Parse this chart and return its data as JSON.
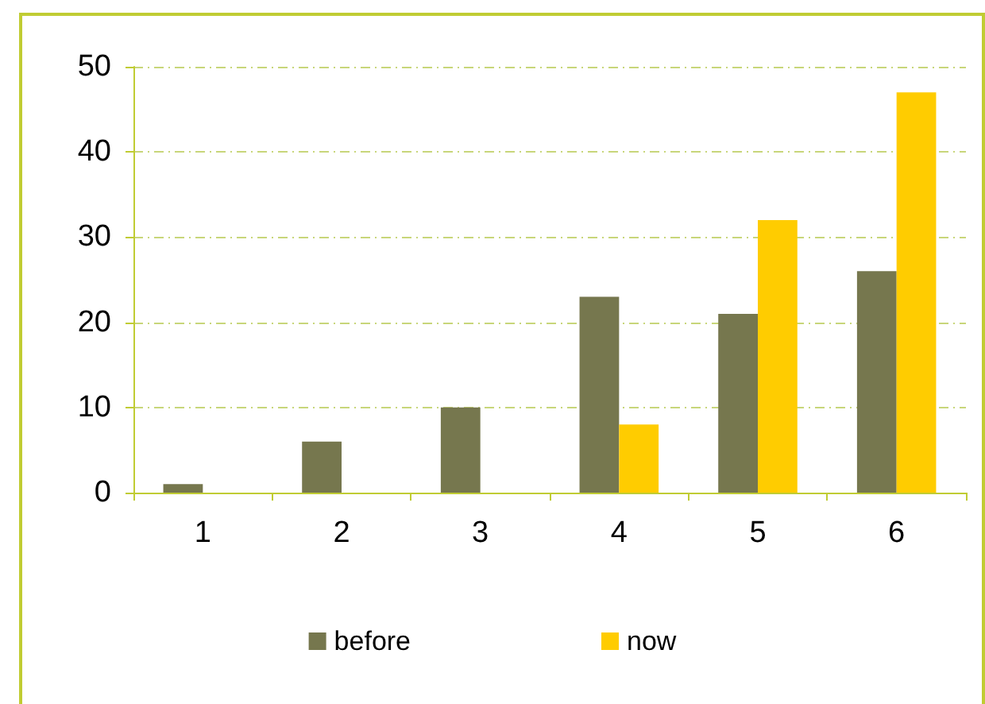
{
  "chart_data": {
    "type": "bar",
    "categories": [
      "1",
      "2",
      "3",
      "4",
      "5",
      "6"
    ],
    "series": [
      {
        "name": "before",
        "color": "#76774e",
        "values": [
          1,
          6,
          10,
          23,
          21,
          26
        ]
      },
      {
        "name": "now",
        "color": "#ffcc00",
        "values": [
          0,
          0,
          0,
          8,
          32,
          47
        ]
      }
    ],
    "ylim": [
      0,
      50
    ],
    "yticks": [
      0,
      10,
      20,
      30,
      40,
      50
    ],
    "grid": "y",
    "legend": "bottom"
  }
}
